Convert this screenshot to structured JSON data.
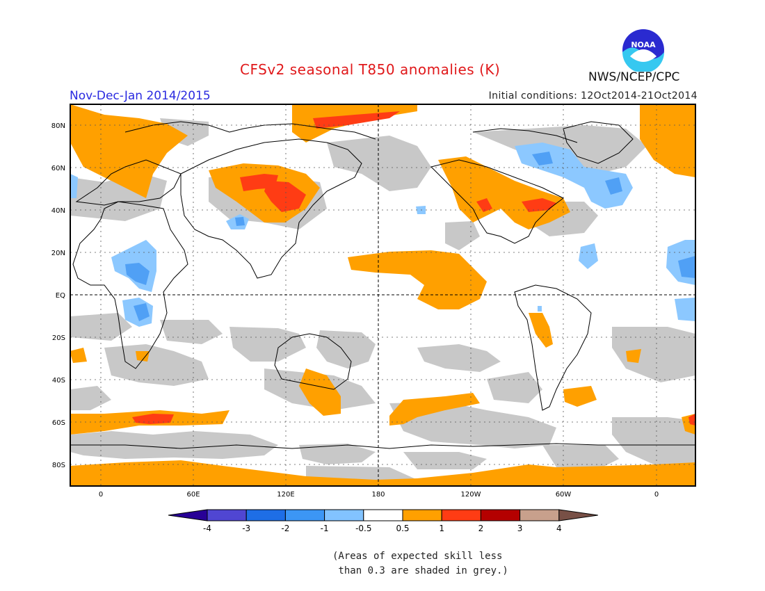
{
  "header": {
    "title": "CFSv2 seasonal T850 anomalies (K)",
    "period": "Nov-Dec-Jan 2014/2015",
    "initial_conditions": "Initial conditions: 12Oct2014-21Oct2014",
    "agency": "NWS/NCEP/CPC",
    "logo_text": "NOAA"
  },
  "map": {
    "y_labels": [
      "80N",
      "60N",
      "40N",
      "20N",
      "EQ",
      "20S",
      "40S",
      "60S",
      "80S"
    ],
    "x_labels": [
      "0",
      "60E",
      "120E",
      "180",
      "120W",
      "60W",
      "0"
    ],
    "colors": {
      "skill_grey": "#c8c8c8",
      "ocean_land": "#ffffff",
      "anom_0_5_1": "#ffa000",
      "anom_1_2": "#ff3c14",
      "anom_neg_1_0_5": "#8cc8ff",
      "anom_neg_2_1": "#50a0f5"
    }
  },
  "colorbar": {
    "labels": [
      "-4",
      "-3",
      "-2",
      "-1",
      "-0.5",
      "0.5",
      "1",
      "2",
      "3",
      "4"
    ],
    "colors": [
      "#280096",
      "#5046d2",
      "#1e6ee6",
      "#3c96f5",
      "#82c3ff",
      "#ffffff",
      "#ffa000",
      "#ff3c14",
      "#b40000",
      "#c8a08c",
      "#785046"
    ]
  },
  "note": {
    "line1": "(Areas of expected skill less",
    "line2": " than 0.3 are shaded in grey.)"
  }
}
